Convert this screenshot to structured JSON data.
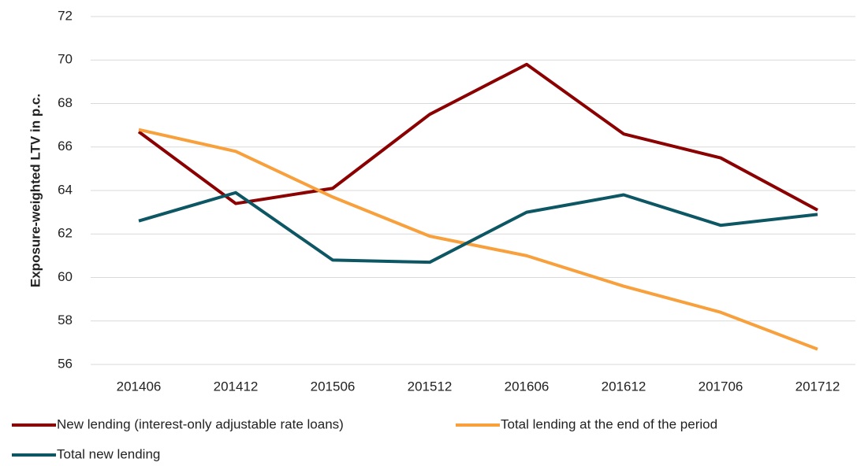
{
  "chart_data": {
    "type": "line",
    "y_label": "Exposure-weighted LTV in p.c.",
    "categories": [
      "201406",
      "201412",
      "201506",
      "201512",
      "201606",
      "201612",
      "201706",
      "201712"
    ],
    "series": [
      {
        "name": "New lending (interest-only adjustable rate loans)",
        "color": "#8b0000",
        "values": [
          66.7,
          63.4,
          64.1,
          67.5,
          69.8,
          66.6,
          65.5,
          63.1
        ]
      },
      {
        "name": "Total lending at the end of the period",
        "color": "#f7a03c",
        "values": [
          66.8,
          65.8,
          63.7,
          61.9,
          61.0,
          59.6,
          58.4,
          56.7
        ]
      },
      {
        "name": "Total new lending",
        "color": "#0d5663",
        "values": [
          62.6,
          63.9,
          60.8,
          60.7,
          63.0,
          63.8,
          62.4,
          62.9
        ]
      }
    ],
    "ylim": [
      56,
      72
    ],
    "yticks": [
      56,
      58,
      60,
      62,
      64,
      66,
      68,
      70,
      72
    ],
    "grid": true,
    "legend": "bottom"
  }
}
